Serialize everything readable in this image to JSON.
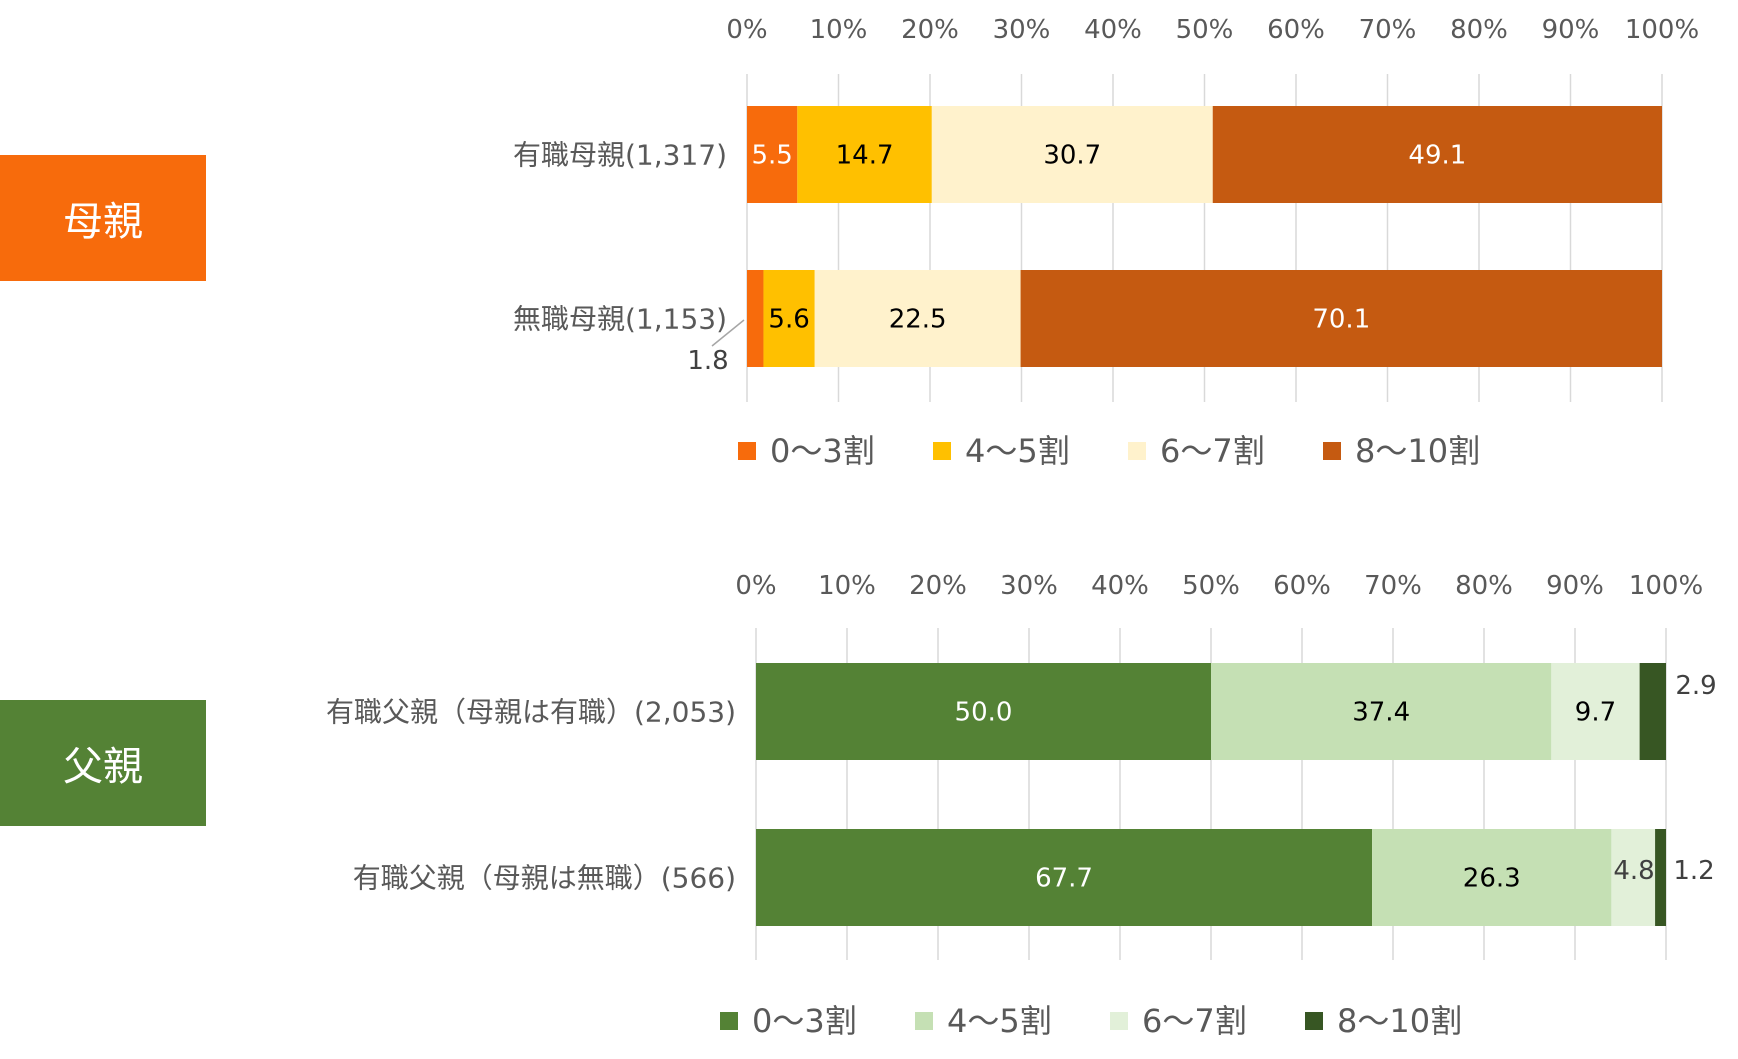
{
  "labels": {
    "mother": "母親",
    "father": "父親"
  },
  "chart_data": [
    {
      "type": "bar",
      "orientation": "horizontal",
      "stacked": true,
      "xlim": [
        0,
        100
      ],
      "x_ticks": [
        "0%",
        "10%",
        "20%",
        "30%",
        "40%",
        "50%",
        "60%",
        "70%",
        "80%",
        "90%",
        "100%"
      ],
      "grid": true,
      "legend_position": "bottom",
      "categories": [
        "有職母親(1,317)",
        "無職母親(1,153)"
      ],
      "series": [
        {
          "name": "0～3割",
          "color": "#f76b0c",
          "values": [
            5.5,
            1.8
          ]
        },
        {
          "name": "4～5割",
          "color": "#ffc000",
          "values": [
            14.7,
            5.6
          ]
        },
        {
          "name": "6～7割",
          "color": "#fff2cc",
          "values": [
            30.7,
            22.5
          ]
        },
        {
          "name": "8～10割",
          "color": "#c55a11",
          "values": [
            49.1,
            70.1
          ]
        }
      ],
      "data_labels": [
        [
          "5.5",
          "1.8"
        ],
        [
          "14.7",
          "5.6"
        ],
        [
          "30.7",
          "22.5"
        ],
        [
          "49.1",
          "70.1"
        ]
      ]
    },
    {
      "type": "bar",
      "orientation": "horizontal",
      "stacked": true,
      "xlim": [
        0,
        100
      ],
      "x_ticks": [
        "0%",
        "10%",
        "20%",
        "30%",
        "40%",
        "50%",
        "60%",
        "70%",
        "80%",
        "90%",
        "100%"
      ],
      "grid": true,
      "legend_position": "bottom",
      "categories": [
        "有職父親（母親は有職）(2,053)",
        "有職父親（母親は無職）(566)"
      ],
      "series": [
        {
          "name": "0～3割",
          "color": "#548235",
          "values": [
            50.0,
            67.7
          ]
        },
        {
          "name": "4～5割",
          "color": "#c5e0b4",
          "values": [
            37.4,
            26.3
          ]
        },
        {
          "name": "6～7割",
          "color": "#e2f0d9",
          "values": [
            9.7,
            4.8
          ]
        },
        {
          "name": "8～10割",
          "color": "#375623",
          "values": [
            2.9,
            1.2
          ]
        }
      ],
      "data_labels": [
        [
          "50.0",
          "67.7"
        ],
        [
          "37.4",
          "26.3"
        ],
        [
          "9.7",
          "4.8"
        ],
        [
          "2.9",
          "1.2"
        ]
      ]
    }
  ]
}
